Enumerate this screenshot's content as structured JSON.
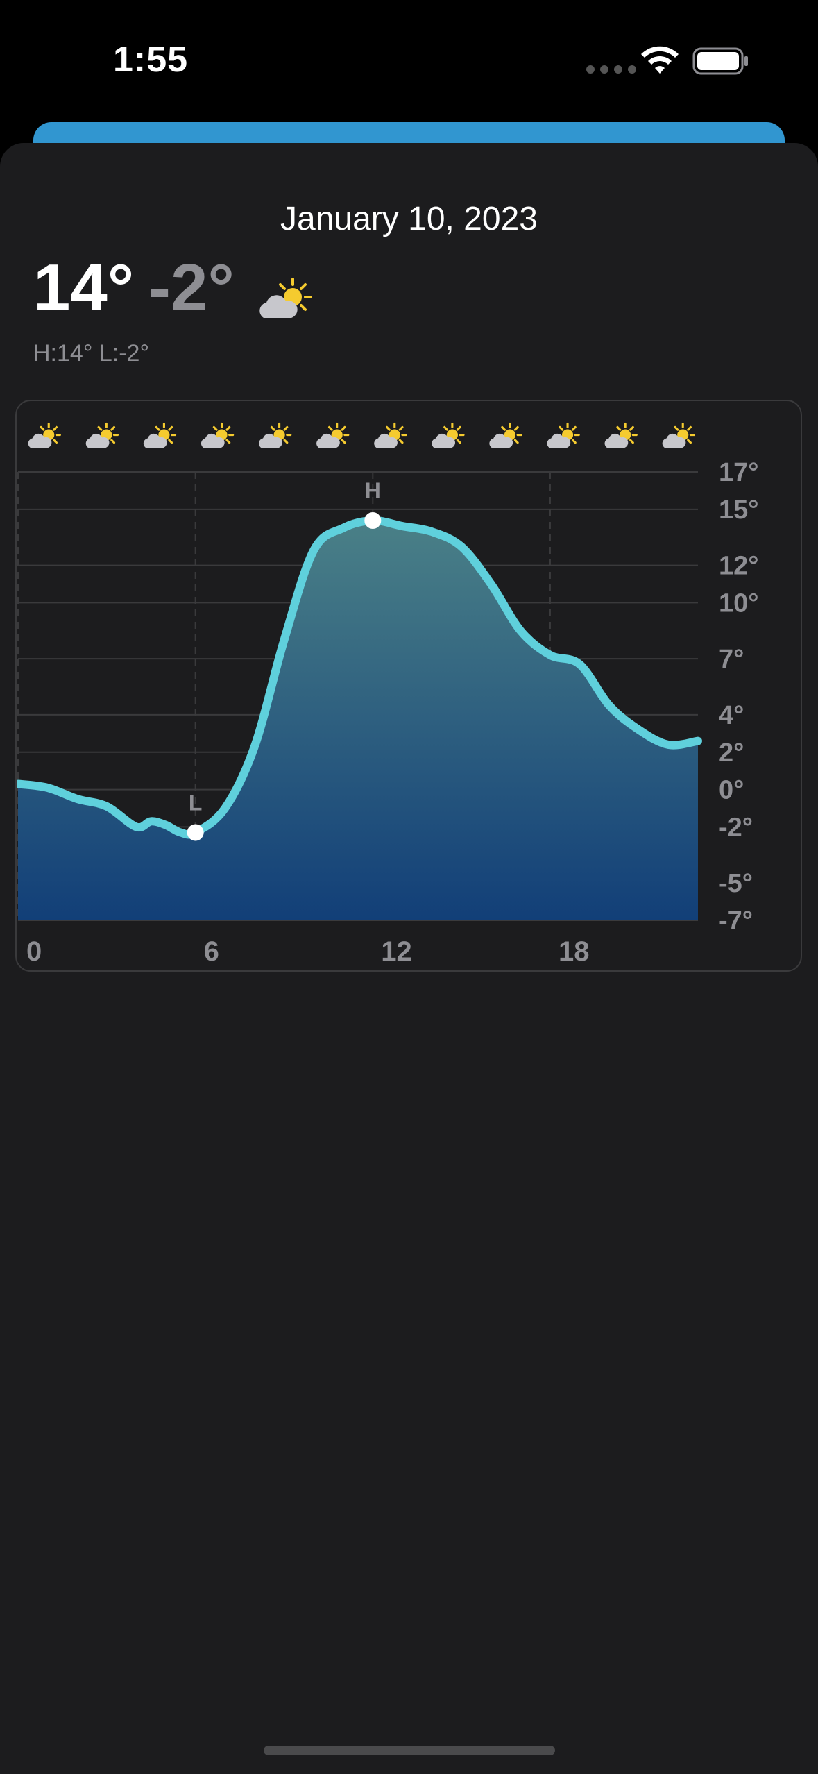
{
  "status_bar": {
    "time": "1:55",
    "wifi_icon": "wifi-icon",
    "battery_icon": "battery-full-icon"
  },
  "header": {
    "date": "January 10, 2023",
    "high_temp": "14°",
    "low_temp": "-2°",
    "condition_icon": "partly-sunny-icon",
    "summary": "H:14° L:-2°"
  },
  "colors": {
    "sheet_bg": "#1c1c1e",
    "accent_blue": "#3196d0",
    "line": "#5fd0dc",
    "fill_top": "#4a8087",
    "fill_bottom": "#123f78",
    "axis_text": "#8e8e93",
    "sun": "#f5cb2f",
    "cloud": "#c7c7cc"
  },
  "chart_data": {
    "type": "area",
    "hourly_icon": "partly-sunny-icon",
    "hourly_icon_count": 12,
    "x": [
      0,
      1,
      2,
      3,
      4,
      4.5,
      5,
      5.5,
      6,
      7,
      8,
      9,
      10,
      11,
      12,
      13,
      14,
      15,
      16,
      17,
      18,
      19,
      20,
      21,
      22,
      23
    ],
    "values": [
      0.3,
      0.1,
      -0.5,
      -0.9,
      -2.0,
      -1.7,
      -1.9,
      -2.3,
      -2.3,
      -1.0,
      2.3,
      8.0,
      12.8,
      14.0,
      14.4,
      14.1,
      13.8,
      13.0,
      11.0,
      8.5,
      7.2,
      6.7,
      4.5,
      3.2,
      2.4,
      2.6
    ],
    "series_values_note": "",
    "x_ticks": [
      "0",
      "6",
      "12",
      "18"
    ],
    "x_tick_values": [
      0,
      6,
      12,
      18
    ],
    "y_ticks": [
      "17°",
      "15°",
      "12°",
      "10°",
      "7°",
      "4°",
      "2°",
      "0°",
      "-2°",
      "-5°",
      "-7°"
    ],
    "y_tick_values": [
      17,
      15,
      12,
      10,
      7,
      4,
      2,
      0,
      -2,
      -5,
      -7
    ],
    "ylim": [
      -7,
      17
    ],
    "xlim": [
      0,
      23
    ],
    "grid": true,
    "annotations": [
      {
        "label": "L",
        "x": 6,
        "y": -2.3
      },
      {
        "label": "H",
        "x": 12,
        "y": 14.4
      }
    ]
  }
}
